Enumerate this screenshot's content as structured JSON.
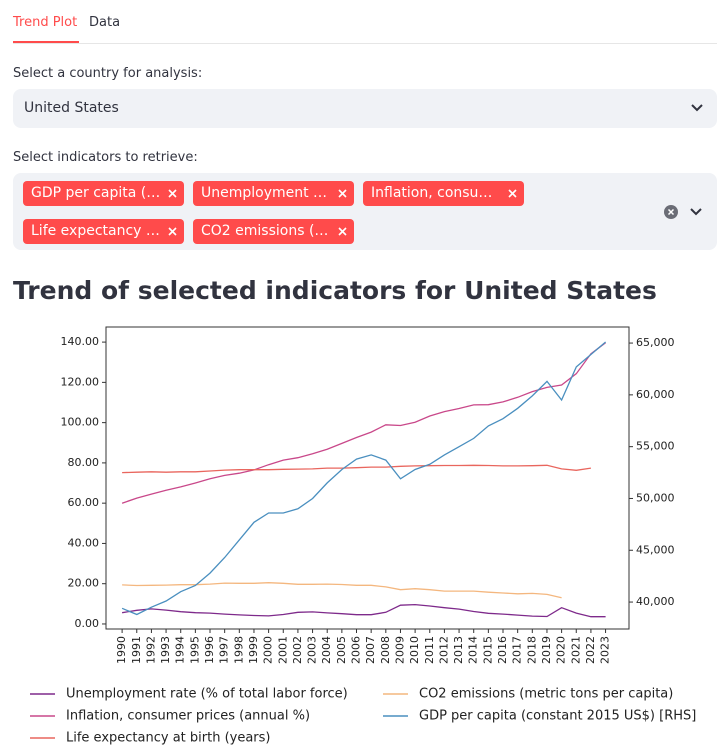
{
  "tabs": [
    "Trend Plot",
    "Data"
  ],
  "country_select": {
    "label": "Select a country for analysis:",
    "value": "United States"
  },
  "indicator_select": {
    "label": "Select indicators to retrieve:",
    "chips": [
      "GDP per capita (…",
      "Unemployment …",
      "Inflation, consu…",
      "Life expectancy …",
      "CO2 emissions (…"
    ]
  },
  "heading": "Trend of selected indicators for United States",
  "chart_data": {
    "type": "line",
    "x": [
      1990,
      1991,
      1992,
      1993,
      1994,
      1995,
      1996,
      1997,
      1998,
      1999,
      2000,
      2001,
      2002,
      2003,
      2004,
      2005,
      2006,
      2007,
      2008,
      2009,
      2010,
      2011,
      2012,
      2013,
      2014,
      2015,
      2016,
      2017,
      2018,
      2019,
      2020,
      2021,
      2022,
      2023
    ],
    "xlim": [
      1988.9,
      2024.6
    ],
    "xticks": [
      1990,
      1991,
      1992,
      1993,
      1994,
      1995,
      1996,
      1997,
      1998,
      1999,
      2000,
      2001,
      2002,
      2003,
      2004,
      2005,
      2006,
      2007,
      2008,
      2009,
      2010,
      2011,
      2012,
      2013,
      2014,
      2015,
      2016,
      2017,
      2018,
      2019,
      2020,
      2021,
      2022,
      2023
    ],
    "ylim": [
      -2.5,
      147.5
    ],
    "yticks": [
      {
        "value": 0,
        "label": "0.00"
      },
      {
        "value": 20,
        "label": "20.00"
      },
      {
        "value": 40,
        "label": "40.00"
      },
      {
        "value": 60,
        "label": "60.00"
      },
      {
        "value": 80,
        "label": "80.00"
      },
      {
        "value": 100,
        "label": "100.00"
      },
      {
        "value": 120,
        "label": "120.00"
      },
      {
        "value": 140,
        "label": "140.00"
      }
    ],
    "y2lim": [
      37400,
      66550
    ],
    "y2ticks": [
      {
        "value": 40000,
        "label": "40,000"
      },
      {
        "value": 45000,
        "label": "45,000"
      },
      {
        "value": 50000,
        "label": "50,000"
      },
      {
        "value": 55000,
        "label": "55,000"
      },
      {
        "value": 60000,
        "label": "60,000"
      },
      {
        "value": 65000,
        "label": "65,000"
      }
    ],
    "legend": "lower left",
    "series": [
      {
        "name": "Unemployment rate (% of total labor force)",
        "color": "#7e2a8b",
        "values": [
          5.6,
          6.8,
          7.5,
          6.9,
          6.1,
          5.6,
          5.4,
          4.9,
          4.5,
          4.2,
          4.0,
          4.7,
          5.8,
          6.0,
          5.5,
          5.1,
          4.6,
          4.6,
          5.8,
          9.3,
          9.6,
          8.9,
          8.1,
          7.4,
          6.2,
          5.3,
          4.9,
          4.4,
          3.9,
          3.7,
          8.1,
          5.4,
          3.6,
          3.6
        ]
      },
      {
        "name": "Inflation, consumer prices (annual %)",
        "color": "#c9488a",
        "values": [
          60.0,
          62.5,
          64.5,
          66.4,
          68.1,
          70.0,
          72.1,
          73.8,
          74.9,
          76.5,
          79.1,
          81.4,
          82.6,
          84.5,
          86.8,
          89.7,
          92.6,
          95.3,
          98.9,
          98.6,
          100.2,
          103.3,
          105.5,
          107.0,
          108.8,
          108.9,
          110.3,
          112.6,
          115.4,
          117.5,
          118.7,
          124.3,
          134.2,
          139.7
        ]
      },
      {
        "name": "Life expectancy at birth (years)",
        "color": "#e9665e",
        "values": [
          75.2,
          75.4,
          75.6,
          75.4,
          75.6,
          75.6,
          76.0,
          76.4,
          76.6,
          76.6,
          76.6,
          76.8,
          76.9,
          77.0,
          77.4,
          77.4,
          77.6,
          77.9,
          77.9,
          78.3,
          78.5,
          78.6,
          78.7,
          78.7,
          78.8,
          78.7,
          78.5,
          78.5,
          78.6,
          78.8,
          77.0,
          76.3,
          77.4,
          null
        ]
      },
      {
        "name": "CO2 emissions (metric tons per capita)",
        "color": "#f4b77f",
        "values": [
          19.4,
          19.1,
          19.2,
          19.3,
          19.5,
          19.5,
          19.8,
          20.3,
          20.2,
          20.2,
          20.5,
          20.2,
          19.7,
          19.7,
          19.8,
          19.6,
          19.2,
          19.2,
          18.4,
          17.0,
          17.5,
          17.0,
          16.3,
          16.3,
          16.3,
          15.8,
          15.4,
          15.0,
          15.2,
          14.7,
          13.0,
          null,
          null,
          null
        ]
      },
      {
        "name": "GDP per capita (constant 2015 US$) [RHS]",
        "color": "#4a8fbf",
        "axis": "y2",
        "values": [
          39400,
          38800,
          39500,
          40100,
          41000,
          41600,
          42800,
          44300,
          46000,
          47700,
          48600,
          48600,
          49000,
          50000,
          51500,
          52800,
          53800,
          54200,
          53700,
          51900,
          52800,
          53300,
          54200,
          55000,
          55800,
          57000,
          57700,
          58700,
          59900,
          61300,
          59500,
          62700,
          63900,
          65100
        ]
      }
    ]
  }
}
